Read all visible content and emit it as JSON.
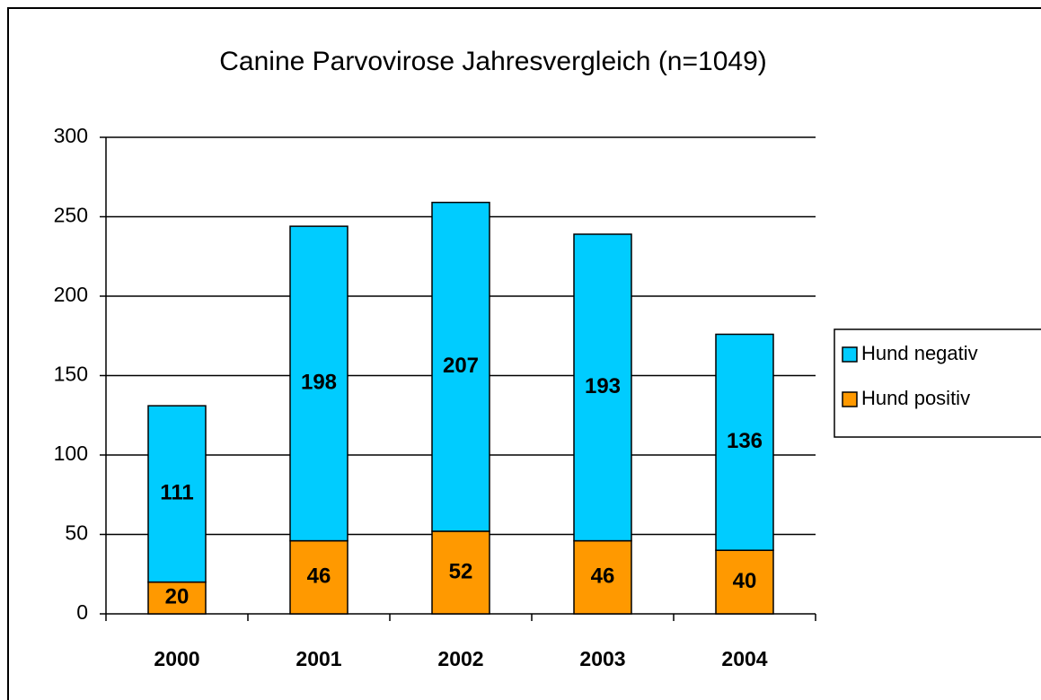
{
  "chart_data": {
    "type": "stacked_bar",
    "title": "Canine Parvovirose Jahresvergleich (n=1049)",
    "categories": [
      "2000",
      "2001",
      "2002",
      "2003",
      "2004"
    ],
    "series": [
      {
        "name": "Hund negativ",
        "color": "#00ccff",
        "values": [
          111,
          198,
          207,
          193,
          136
        ]
      },
      {
        "name": "Hund positiv",
        "color": "#ff9900",
        "values": [
          20,
          46,
          52,
          46,
          40
        ]
      }
    ],
    "ylim": [
      0,
      300
    ],
    "yticks": [
      0,
      50,
      100,
      150,
      200,
      250,
      300
    ],
    "grid": true,
    "legend": "right"
  }
}
